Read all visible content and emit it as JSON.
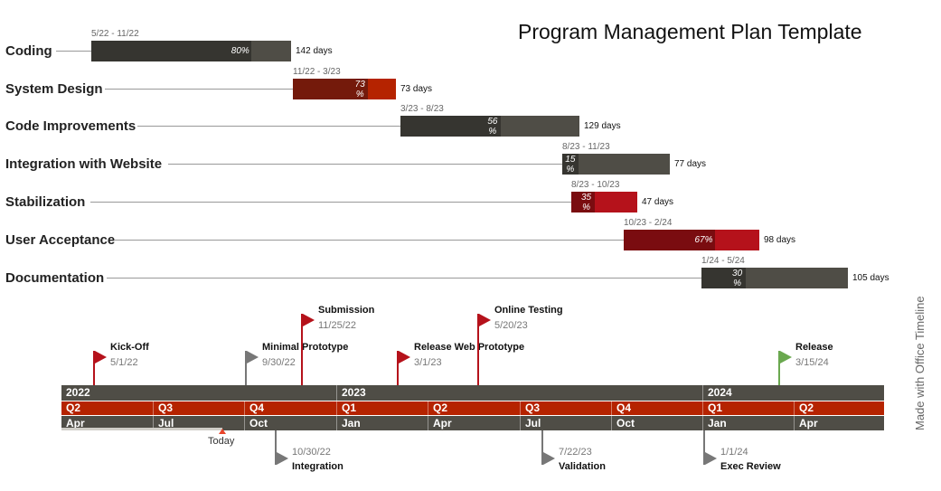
{
  "title": "Program Management Plan Template",
  "tasks": [
    {
      "name": "Coding",
      "dates": "5/22 - 11/22",
      "duration": "142 days",
      "progress": 80,
      "progress_label": "80%",
      "color_dark": "#363530",
      "color_light": "#4f4d46"
    },
    {
      "name": "System Design",
      "dates": "11/22 - 3/23",
      "duration": "73 days",
      "progress": 73,
      "progress_label": "73 %",
      "color_dark": "#741a0b",
      "color_light": "#b52300"
    },
    {
      "name": "Code Improvements",
      "dates": "3/23 - 8/23",
      "duration": "129 days",
      "progress": 56,
      "progress_label": "56 %",
      "color_dark": "#363530",
      "color_light": "#4f4d46"
    },
    {
      "name": "Integration with Website",
      "dates": "8/23 - 11/23",
      "duration": "77 days",
      "progress": 15,
      "progress_label": "15 %",
      "color_dark": "#363530",
      "color_light": "#4f4d46"
    },
    {
      "name": "Stabilization",
      "dates": "8/23 - 10/23",
      "duration": "47 days",
      "progress": 35,
      "progress_label": "35 %",
      "color_dark": "#7a0c10",
      "color_light": "#b5121b"
    },
    {
      "name": "User Acceptance",
      "dates": "10/23 - 2/24",
      "duration": "98 days",
      "progress": 67,
      "progress_label": "67%",
      "color_dark": "#7a0c10",
      "color_light": "#b5121b"
    },
    {
      "name": "Documentation",
      "dates": "1/24 - 5/24",
      "duration": "105 days",
      "progress": 30,
      "progress_label": "30 %",
      "color_dark": "#363530",
      "color_light": "#4f4d46"
    }
  ],
  "milestones_above": [
    {
      "name": "Kick-Off",
      "date": "5/1/22",
      "color": "#b5121b"
    },
    {
      "name": "Minimal Prototype",
      "date": "9/30/22",
      "color": "#777777"
    },
    {
      "name": "Submission",
      "date": "11/25/22",
      "color": "#b5121b"
    },
    {
      "name": "Release Web Prototype",
      "date": "3/1/23",
      "color": "#b5121b"
    },
    {
      "name": "Online Testing",
      "date": "5/20/23",
      "color": "#b5121b"
    },
    {
      "name": "Release",
      "date": "3/15/24",
      "color": "#6aa84f"
    }
  ],
  "milestones_below": [
    {
      "name": "Integration",
      "date": "10/30/22",
      "color": "#777777"
    },
    {
      "name": "Validation",
      "date": "7/22/23",
      "color": "#777777"
    },
    {
      "name": "Exec Review",
      "date": "1/1/24",
      "color": "#777777"
    }
  ],
  "timescale": {
    "years": [
      "2022",
      "2023",
      "2024"
    ],
    "quarters": [
      "Q2",
      "Q3",
      "Q4",
      "Q1",
      "Q2",
      "Q3",
      "Q4",
      "Q1",
      "Q2"
    ],
    "months": [
      "Apr",
      "Jul",
      "Oct",
      "Jan",
      "Apr",
      "Jul",
      "Oct",
      "Jan",
      "Apr"
    ],
    "year_color": "#4f4d46",
    "quarter_color": "#b52300",
    "month_color": "#4f4d46"
  },
  "today": {
    "label": "Today",
    "color": "#e8442a"
  },
  "brand": "Made with  Office Timeline"
}
